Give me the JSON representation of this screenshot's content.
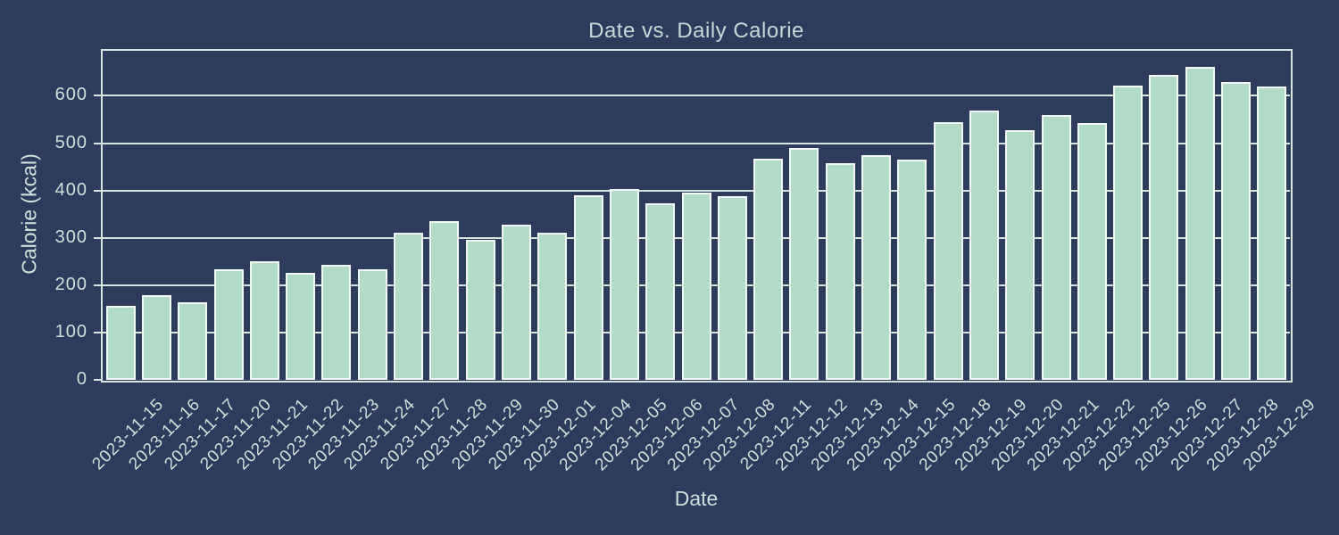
{
  "chart_data": {
    "type": "bar",
    "title": "Date vs. Daily Calorie",
    "xlabel": "Date",
    "ylabel": "Calorie (kcal)",
    "categories": [
      "2023-11-15",
      "2023-11-16",
      "2023-11-17",
      "2023-11-20",
      "2023-11-21",
      "2023-11-22",
      "2023-11-23",
      "2023-11-24",
      "2023-11-27",
      "2023-11-28",
      "2023-11-29",
      "2023-11-30",
      "2023-12-01",
      "2023-12-04",
      "2023-12-05",
      "2023-12-06",
      "2023-12-07",
      "2023-12-08",
      "2023-12-11",
      "2023-12-12",
      "2023-12-13",
      "2023-12-14",
      "2023-12-15",
      "2023-12-18",
      "2023-12-19",
      "2023-12-20",
      "2023-12-21",
      "2023-12-22",
      "2023-12-25",
      "2023-12-26",
      "2023-12-27",
      "2023-12-28",
      "2023-12-29"
    ],
    "values": [
      157,
      179,
      164,
      233,
      250,
      226,
      243,
      234,
      311,
      335,
      296,
      328,
      311,
      389,
      404,
      373,
      395,
      388,
      467,
      489,
      458,
      474,
      466,
      544,
      568,
      528,
      559,
      542,
      621,
      645,
      662,
      629,
      620
    ],
    "yticks": [
      0,
      100,
      200,
      300,
      400,
      500,
      600
    ],
    "ylim": [
      0,
      695
    ],
    "grid": "horizontal",
    "legend_position": "none",
    "colors": {
      "background": "#2d3b5c",
      "bar_fill": "#b2dbc8",
      "bar_edge": "#f3f8f6",
      "grid_line": "#d5e6df",
      "axis_line": "#d5e6df",
      "tick_text": "#cde1d9",
      "title_text": "#c8d8d6"
    }
  }
}
